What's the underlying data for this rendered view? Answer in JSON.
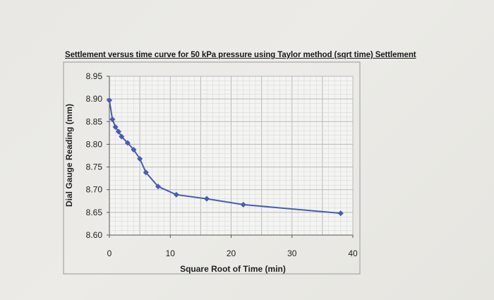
{
  "chart_data": {
    "type": "line",
    "title": "Settlement versus time curve for 50 kPa pressure using Taylor method (sqrt time) Settlement",
    "xlabel": "Square Root of Time (min)",
    "ylabel": "Dial Gauge Reading (mm)",
    "xlim": [
      0,
      40
    ],
    "ylim": [
      8.6,
      8.95
    ],
    "x_ticks": [
      "0",
      "10",
      "20",
      "30",
      "40"
    ],
    "y_ticks": [
      "8.95",
      "8.90",
      "8.85",
      "8.80",
      "8.75",
      "8.70",
      "8.65",
      "8.60"
    ],
    "grid": true,
    "series": [
      {
        "color": "#4a5cb0",
        "x": [
          0,
          0.5,
          1,
          1.5,
          2,
          3,
          4,
          5,
          6,
          8,
          11,
          16,
          22,
          38
        ],
        "y": [
          8.897,
          8.855,
          8.838,
          8.828,
          8.817,
          8.803,
          8.788,
          8.768,
          8.738,
          8.707,
          8.689,
          8.68,
          8.667,
          8.648
        ]
      }
    ]
  }
}
